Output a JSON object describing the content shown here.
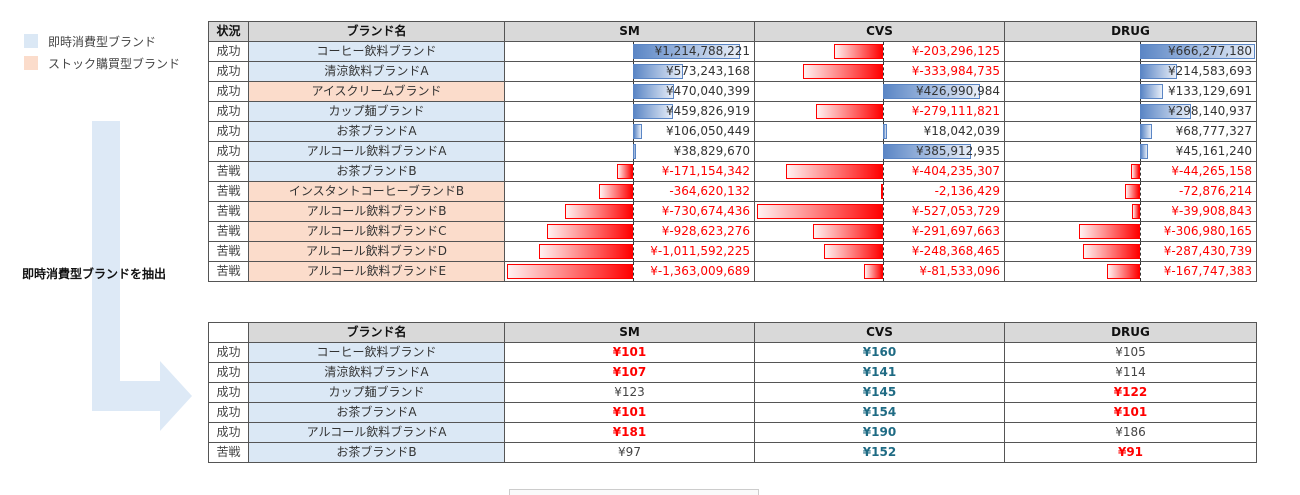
{
  "legend": {
    "items": [
      {
        "label": "即時消費型ブランド",
        "color": "#dbe8f5"
      },
      {
        "label": "ストック購買型ブランド",
        "color": "#fbdccb"
      }
    ]
  },
  "extract_label": "即時消費型ブランドを抽出",
  "table1": {
    "headers": [
      "状況",
      "ブランド名",
      "SM",
      "CVS",
      "DRUG"
    ],
    "scales": {
      "SM": 1363009689,
      "CVS": 527053729,
      "DRUG": 666277180
    },
    "rows": [
      {
        "status": "成功",
        "brand": "コーヒー飲料ブランド",
        "type": "blue",
        "sm": 1214788221,
        "cvs": -203296125,
        "drug": 666277180,
        "sm_text": "¥1,214,788,221",
        "cvs_text": "¥-203,296,125",
        "drug_text": "¥666,277,180"
      },
      {
        "status": "成功",
        "brand": "清涼飲料ブランドA",
        "type": "blue",
        "sm": 573243168,
        "cvs": -333984735,
        "drug": 214583693,
        "sm_text": "¥573,243,168",
        "cvs_text": "¥-333,984,735",
        "drug_text": "¥214,583,693"
      },
      {
        "status": "成功",
        "brand": "アイスクリームブランド",
        "type": "orange",
        "sm": 470040399,
        "cvs": 426990984,
        "drug": 133129691,
        "sm_text": "¥470,040,399",
        "cvs_text": "¥426,990,984",
        "drug_text": "¥133,129,691"
      },
      {
        "status": "成功",
        "brand": "カップ麺ブランド",
        "type": "blue",
        "sm": 459826919,
        "cvs": -279111821,
        "drug": 298140937,
        "sm_text": "¥459,826,919",
        "cvs_text": "¥-279,111,821",
        "drug_text": "¥298,140,937"
      },
      {
        "status": "成功",
        "brand": "お茶ブランドA",
        "type": "blue",
        "sm": 106050449,
        "cvs": 18042039,
        "drug": 68777327,
        "sm_text": "¥106,050,449",
        "cvs_text": "¥18,042,039",
        "drug_text": "¥68,777,327"
      },
      {
        "status": "成功",
        "brand": "アルコール飲料ブランドA",
        "type": "blue",
        "sm": 38829670,
        "cvs": 385912935,
        "drug": 45161240,
        "sm_text": "¥38,829,670",
        "cvs_text": "¥385,912,935",
        "drug_text": "¥45,161,240"
      },
      {
        "status": "苦戦",
        "brand": "お茶ブランドB",
        "type": "blue",
        "sm": -171154342,
        "cvs": -404235307,
        "drug": -44265158,
        "sm_text": "¥-171,154,342",
        "cvs_text": "¥-404,235,307",
        "drug_text": "¥-44,265,158"
      },
      {
        "status": "苦戦",
        "brand": "インスタントコーヒーブランドB",
        "type": "orange",
        "sm": -364620132,
        "cvs": -2136429,
        "drug": -72876214,
        "sm_text": "-364,620,132",
        "cvs_text": "-2,136,429",
        "drug_text": "-72,876,214"
      },
      {
        "status": "苦戦",
        "brand": "アルコール飲料ブランドB",
        "type": "orange",
        "sm": -730674436,
        "cvs": -527053729,
        "drug": -39908843,
        "sm_text": "¥-730,674,436",
        "cvs_text": "¥-527,053,729",
        "drug_text": "¥-39,908,843"
      },
      {
        "status": "苦戦",
        "brand": "アルコール飲料ブランドC",
        "type": "orange",
        "sm": -928623276,
        "cvs": -291697663,
        "drug": -306980165,
        "sm_text": "¥-928,623,276",
        "cvs_text": "¥-291,697,663",
        "drug_text": "¥-306,980,165"
      },
      {
        "status": "苦戦",
        "brand": "アルコール飲料ブランドD",
        "type": "orange",
        "sm": -1011592225,
        "cvs": -248368465,
        "drug": -287430739,
        "sm_text": "¥-1,011,592,225",
        "cvs_text": "¥-248,368,465",
        "drug_text": "¥-287,430,739"
      },
      {
        "status": "苦戦",
        "brand": "アルコール飲料ブランドE",
        "type": "orange",
        "sm": -1363009689,
        "cvs": -81533096,
        "drug": -167747383,
        "sm_text": "¥-1,363,009,689",
        "cvs_text": "¥-81,533,096",
        "drug_text": "¥-167,747,383"
      }
    ]
  },
  "table2": {
    "headers": [
      "",
      "ブランド名",
      "SM",
      "CVS",
      "DRUG"
    ],
    "rows": [
      {
        "status": "成功",
        "brand": "コーヒー飲料ブランド",
        "sm": "¥101",
        "sm_style": "lo",
        "cvs": "¥160",
        "cvs_style": "hi",
        "drug": "¥105",
        "drug_style": "mid"
      },
      {
        "status": "成功",
        "brand": "清涼飲料ブランドA",
        "sm": "¥107",
        "sm_style": "lo",
        "cvs": "¥141",
        "cvs_style": "hi",
        "drug": "¥114",
        "drug_style": "mid"
      },
      {
        "status": "成功",
        "brand": "カップ麺ブランド",
        "sm": "¥123",
        "sm_style": "mid",
        "cvs": "¥145",
        "cvs_style": "hi",
        "drug": "¥122",
        "drug_style": "lo"
      },
      {
        "status": "成功",
        "brand": "お茶ブランドA",
        "sm": "¥101",
        "sm_style": "lo",
        "cvs": "¥154",
        "cvs_style": "hi",
        "drug": "¥101",
        "drug_style": "lo"
      },
      {
        "status": "成功",
        "brand": "アルコール飲料ブランドA",
        "sm": "¥181",
        "sm_style": "lo",
        "cvs": "¥190",
        "cvs_style": "hi",
        "drug": "¥186",
        "drug_style": "mid"
      },
      {
        "status": "苦戦",
        "brand": "お茶ブランドB",
        "sm": "¥97",
        "sm_style": "mid",
        "cvs": "¥152",
        "cvs_style": "hi",
        "drug": "¥91",
        "drug_style": "lo"
      }
    ]
  }
}
